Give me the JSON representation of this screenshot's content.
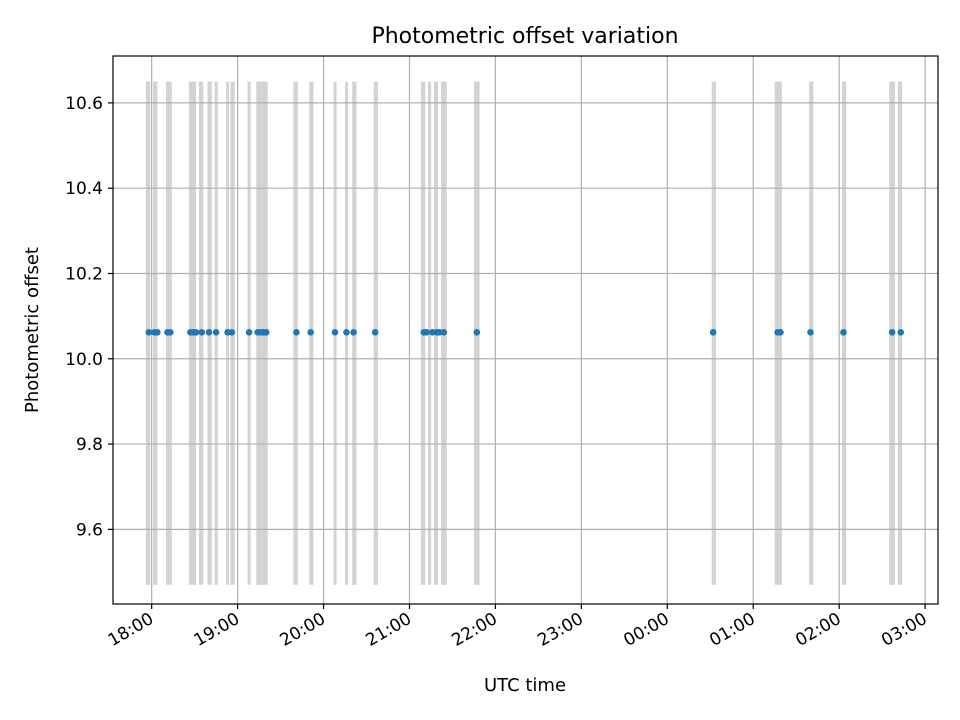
{
  "chart_data": {
    "type": "scatter",
    "title": "Photometric offset variation",
    "xlabel": "UTC time",
    "ylabel": "Photometric offset",
    "xlim": [
      "17:33",
      "03:09"
    ],
    "ylim": [
      9.425,
      10.71
    ],
    "grid": true,
    "x_ticks": [
      "18:00",
      "19:00",
      "20:00",
      "21:00",
      "22:00",
      "23:00",
      "00:00",
      "01:00",
      "02:00",
      "03:00"
    ],
    "y_ticks": [
      "9.6",
      "9.8",
      "10.0",
      "10.2",
      "10.4",
      "10.6"
    ],
    "y_tick_values": [
      9.6,
      9.8,
      10.0,
      10.2,
      10.4,
      10.6
    ],
    "band_range": [
      9.47,
      10.65
    ],
    "band_color": "#d3d3d3",
    "point_color": "#1f77b4",
    "grid_color": "#b0b0b0",
    "series": [
      {
        "values": [
          {
            "x": "17:58",
            "y": 10.062
          },
          {
            "x": "18:02",
            "y": 10.062
          },
          {
            "x": "18:04",
            "y": 10.062
          },
          {
            "x": "18:11",
            "y": 10.062
          },
          {
            "x": "18:13",
            "y": 10.062
          },
          {
            "x": "18:27",
            "y": 10.062
          },
          {
            "x": "18:29",
            "y": 10.062
          },
          {
            "x": "18:31",
            "y": 10.062
          },
          {
            "x": "18:35",
            "y": 10.062
          },
          {
            "x": "18:40",
            "y": 10.062
          },
          {
            "x": "18:45",
            "y": 10.062
          },
          {
            "x": "18:53",
            "y": 10.062
          },
          {
            "x": "18:56",
            "y": 10.062
          },
          {
            "x": "19:08",
            "y": 10.062
          },
          {
            "x": "19:14",
            "y": 10.062
          },
          {
            "x": "19:16",
            "y": 10.062
          },
          {
            "x": "19:18",
            "y": 10.062
          },
          {
            "x": "19:20",
            "y": 10.062
          },
          {
            "x": "19:41",
            "y": 10.062
          },
          {
            "x": "19:51",
            "y": 10.062
          },
          {
            "x": "20:08",
            "y": 10.062
          },
          {
            "x": "20:16",
            "y": 10.062
          },
          {
            "x": "20:21",
            "y": 10.062
          },
          {
            "x": "20:36",
            "y": 10.062
          },
          {
            "x": "21:10",
            "y": 10.062
          },
          {
            "x": "21:12",
            "y": 10.062
          },
          {
            "x": "21:16",
            "y": 10.062
          },
          {
            "x": "21:19",
            "y": 10.062
          },
          {
            "x": "21:21",
            "y": 10.062
          },
          {
            "x": "21:24",
            "y": 10.062
          },
          {
            "x": "21:47",
            "y": 10.062
          },
          {
            "x": "00:32",
            "y": 10.062
          },
          {
            "x": "01:17",
            "y": 10.062
          },
          {
            "x": "01:19",
            "y": 10.062
          },
          {
            "x": "01:40",
            "y": 10.062
          },
          {
            "x": "02:03",
            "y": 10.062
          },
          {
            "x": "02:37",
            "y": 10.062
          },
          {
            "x": "02:43",
            "y": 10.062
          }
        ]
      }
    ],
    "bands": [
      [
        "17:56",
        "17:59"
      ],
      [
        "18:01",
        "18:04"
      ],
      [
        "18:10",
        "18:14"
      ],
      [
        "18:26",
        "18:31"
      ],
      [
        "18:33",
        "18:36"
      ],
      [
        "18:39",
        "18:42"
      ],
      [
        "18:44",
        "18:46"
      ],
      [
        "18:52",
        "18:54"
      ],
      [
        "18:55",
        "18:58"
      ],
      [
        "19:07",
        "19:09"
      ],
      [
        "19:13",
        "19:21"
      ],
      [
        "19:39",
        "19:42"
      ],
      [
        "19:50",
        "19:53"
      ],
      [
        "20:07",
        "20:09"
      ],
      [
        "20:15",
        "20:17"
      ],
      [
        "20:20",
        "20:23"
      ],
      [
        "20:35",
        "20:38"
      ],
      [
        "21:08",
        "21:11"
      ],
      [
        "21:13",
        "21:15"
      ],
      [
        "21:17",
        "21:20"
      ],
      [
        "21:22",
        "21:26"
      ],
      [
        "21:45",
        "21:49"
      ],
      [
        "00:31",
        "00:34"
      ],
      [
        "01:15",
        "01:20"
      ],
      [
        "01:39",
        "01:42"
      ],
      [
        "02:02",
        "02:05"
      ],
      [
        "02:35",
        "02:39"
      ],
      [
        "02:41",
        "02:44"
      ]
    ]
  }
}
